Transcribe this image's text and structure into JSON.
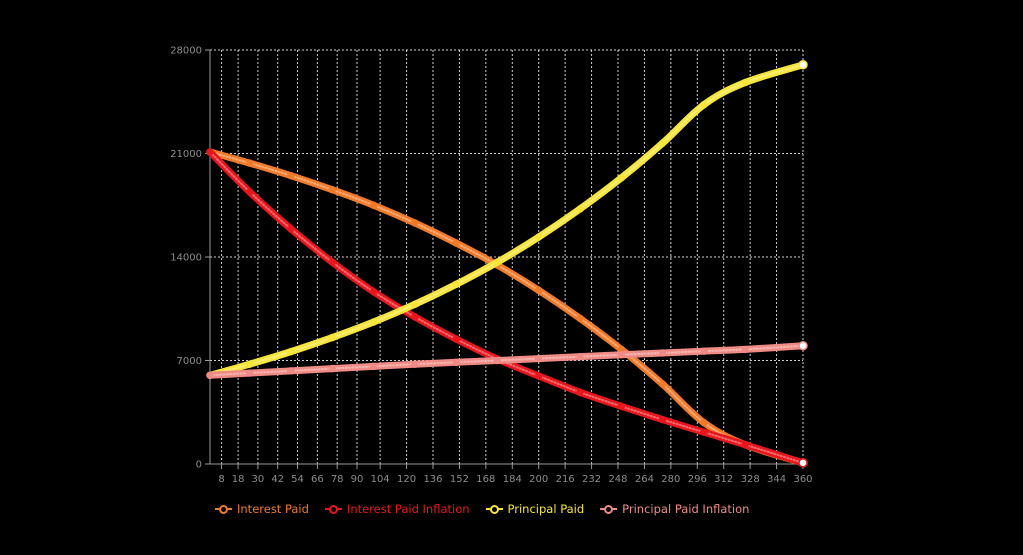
{
  "chart_data": {
    "type": "line",
    "x": [
      1,
      25,
      50,
      75,
      100,
      125,
      150,
      175,
      200,
      225,
      250,
      275,
      300,
      325,
      360
    ],
    "xticks": [
      8,
      18,
      30,
      42,
      54,
      66,
      78,
      90,
      104,
      120,
      136,
      152,
      168,
      184,
      200,
      216,
      232,
      248,
      264,
      280,
      296,
      312,
      328,
      344,
      360
    ],
    "yticks": [
      0,
      7000,
      14000,
      21000,
      28000
    ],
    "xlim": [
      1,
      360
    ],
    "ylim": [
      0,
      28000
    ],
    "grid": true,
    "legend_position": "bottom-left",
    "series": [
      {
        "name": "Interest Paid",
        "color": "#f07a2a",
        "values": [
          21100,
          20350,
          19500,
          18550,
          17500,
          16300,
          14950,
          13450,
          11750,
          9850,
          7750,
          5400,
          2800,
          1300,
          80
        ]
      },
      {
        "name": "Interest Paid Inflation",
        "color": "#e8161c",
        "values": [
          21100,
          18400,
          15900,
          13650,
          11650,
          9950,
          8450,
          7100,
          5950,
          4850,
          3900,
          3000,
          2150,
          1300,
          80
        ]
      },
      {
        "name": "Principal Paid",
        "color": "#f7e53a",
        "values": [
          6000,
          6750,
          7600,
          8550,
          9600,
          10800,
          12150,
          13650,
          15350,
          17250,
          19350,
          21700,
          24300,
          25800,
          27000
        ]
      },
      {
        "name": "Principal Paid Inflation",
        "color": "#f08a85",
        "values": [
          6000,
          6150,
          6300,
          6450,
          6600,
          6750,
          6880,
          7000,
          7130,
          7260,
          7390,
          7510,
          7630,
          7750,
          8000
        ]
      }
    ]
  }
}
